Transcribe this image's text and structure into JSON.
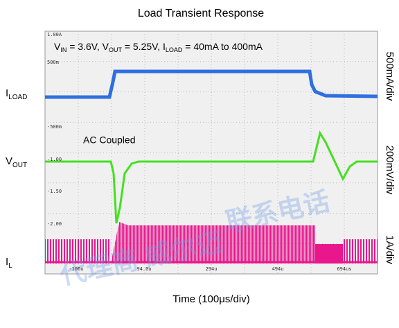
{
  "title": "Load Transient Response",
  "conditions": [
    "V",
    "IN",
    " = 3.6V, V",
    "OUT",
    " = 5.25V, I",
    "LOAD",
    " = 40mA to 400mA"
  ],
  "annotation": "AC Coupled",
  "left_labels": [
    [
      "I",
      "LOAD"
    ],
    [
      "V",
      "OUT"
    ],
    [
      "I",
      "L"
    ]
  ],
  "right_labels": [
    "500mA/div",
    "200mV/div",
    "1A/div"
  ],
  "scope_labels": [
    "1.00A",
    "500m",
    "-500m",
    "-1.00",
    "-1.50",
    "-2.00"
  ],
  "time_labels": [
    "-106u",
    "94.0u",
    "294u",
    "494u",
    "694us"
  ],
  "x_label": "Time (100μs/div)",
  "watermark": [
    "代理商 威尔迈",
    "联系电话"
  ]
}
